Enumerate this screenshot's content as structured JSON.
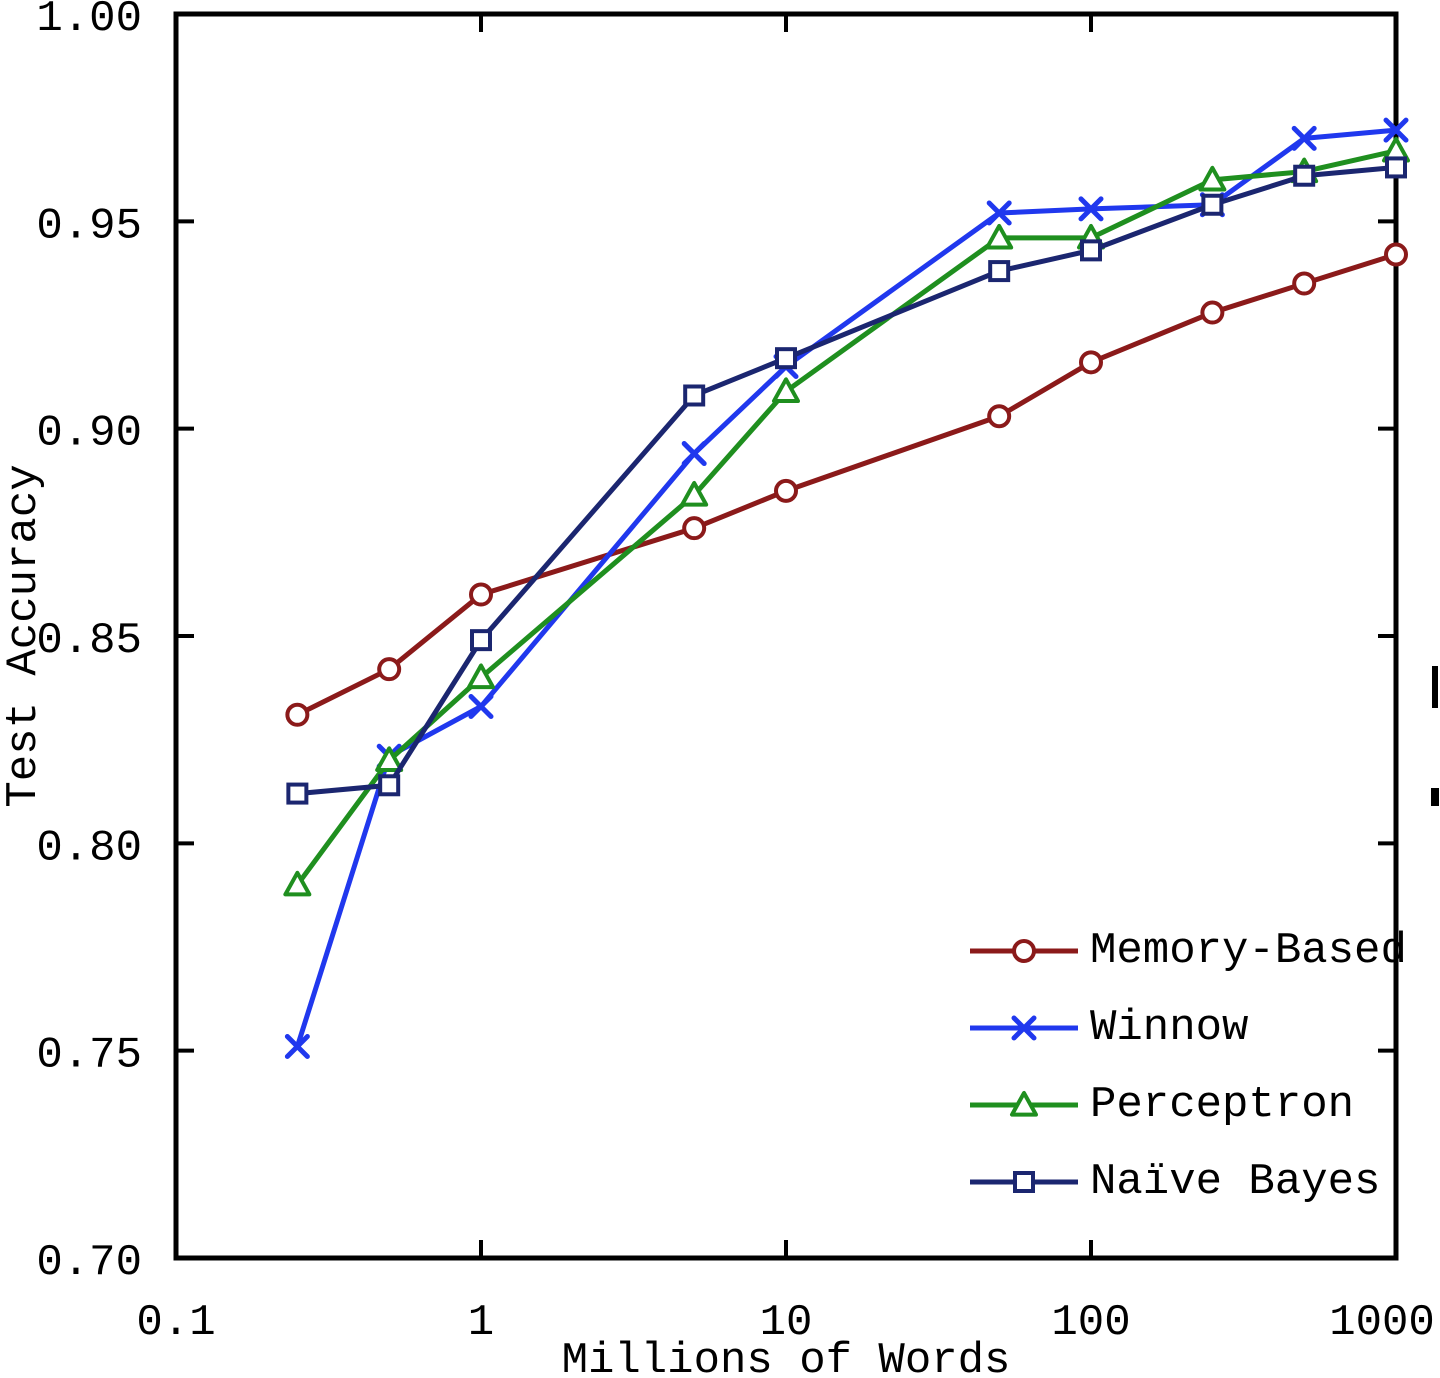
{
  "figure": {
    "background": "#ffffff",
    "axis_color": "#000000"
  },
  "chart_data": {
    "type": "line",
    "title": "",
    "xlabel": "Millions of Words",
    "ylabel": "Test Accuracy",
    "x_scale": "log",
    "xlim": [
      0.1,
      1000
    ],
    "ylim": [
      0.7,
      1.0
    ],
    "x_ticks": [
      0.1,
      1,
      10,
      100,
      1000
    ],
    "x_tick_labels": [
      "0.1",
      "1",
      "10",
      "100",
      "1000"
    ],
    "y_ticks": [
      0.7,
      0.75,
      0.8,
      0.85,
      0.9,
      0.95,
      1.0
    ],
    "y_tick_labels": [
      "0.70",
      "0.75",
      "0.80",
      "0.85",
      "0.90",
      "0.95",
      "1.00"
    ],
    "grid": false,
    "legend_position": "inside lower right",
    "x": [
      0.25,
      0.5,
      1,
      5,
      10,
      50,
      100,
      250,
      500,
      1000
    ],
    "series": [
      {
        "name": "Memory-Based",
        "color": "#8B1A1A",
        "marker": "circle",
        "values": [
          0.831,
          0.842,
          0.86,
          0.876,
          0.885,
          0.903,
          0.916,
          0.928,
          0.935,
          0.942
        ]
      },
      {
        "name": "Winnow",
        "color": "#2038EE",
        "marker": "x",
        "values": [
          0.751,
          0.821,
          0.833,
          0.894,
          0.915,
          0.952,
          0.953,
          0.954,
          0.97,
          0.972
        ]
      },
      {
        "name": "Perceptron",
        "color": "#1F8F1F",
        "marker": "triangle",
        "values": [
          0.79,
          0.82,
          0.84,
          0.884,
          0.909,
          0.946,
          0.946,
          0.96,
          0.962,
          0.967
        ]
      },
      {
        "name": "Naïve Bayes",
        "color": "#1B2670",
        "marker": "square",
        "values": [
          0.812,
          0.814,
          0.849,
          0.908,
          0.917,
          0.938,
          0.943,
          0.954,
          0.961,
          0.963
        ]
      }
    ]
  }
}
